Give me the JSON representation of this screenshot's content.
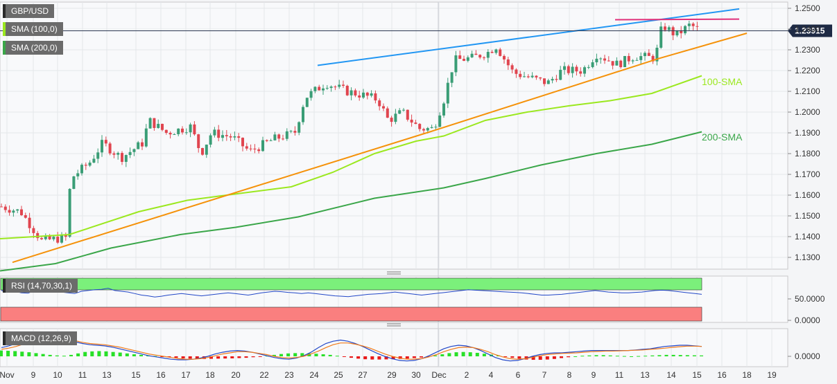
{
  "chart_data": {
    "type": "candlestick",
    "symbol": "GBP/USD",
    "last_price": "1.23915",
    "price_axis": {
      "ticks": [
        "1.2500",
        "1.2400",
        "1.2300",
        "1.2200",
        "1.2100",
        "1.2000",
        "1.1900",
        "1.1800",
        "1.1700",
        "1.1600",
        "1.1500",
        "1.1400",
        "1.1300"
      ],
      "range": [
        1.1238,
        1.2547
      ]
    },
    "x_ticks": [
      "Nov",
      "9",
      "10",
      "11",
      "13",
      "15",
      "16",
      "17",
      "18",
      "20",
      "22",
      "23",
      "24",
      "25",
      "27",
      "29",
      "30",
      "Dec",
      "2",
      "4",
      "6",
      "7",
      "8",
      "9",
      "11",
      "13",
      "14",
      "15",
      "16",
      "18",
      "19"
    ],
    "overlays": [
      {
        "name": "SMA (100,0)",
        "color": "#9be81f",
        "annotation": "100-SMA",
        "points": [
          [
            0,
            1.139
          ],
          [
            100,
            1.141
          ],
          [
            200,
            1.152
          ],
          [
            270,
            1.1575
          ],
          [
            350,
            1.161
          ],
          [
            420,
            1.164
          ],
          [
            480,
            1.171
          ],
          [
            540,
            1.18
          ],
          [
            600,
            1.186
          ],
          [
            640,
            1.1885
          ],
          [
            700,
            1.196
          ],
          [
            760,
            1.2
          ],
          [
            820,
            1.203
          ],
          [
            880,
            1.2055
          ],
          [
            940,
            1.209
          ],
          [
            1012,
            1.2175
          ]
        ]
      },
      {
        "name": "SMA (200,0)",
        "color": "#3aa649",
        "annotation": "200-SMA",
        "points": [
          [
            0,
            1.1235
          ],
          [
            80,
            1.127
          ],
          [
            160,
            1.1345
          ],
          [
            260,
            1.141
          ],
          [
            340,
            1.1445
          ],
          [
            430,
            1.1495
          ],
          [
            540,
            1.1585
          ],
          [
            640,
            1.1635
          ],
          [
            700,
            1.168
          ],
          [
            780,
            1.1745
          ],
          [
            860,
            1.18
          ],
          [
            940,
            1.1845
          ],
          [
            1012,
            1.1905
          ]
        ]
      }
    ],
    "trendlines": [
      {
        "name": "rising-support",
        "color": "#f5920a",
        "points": [
          [
            18,
            1.1276
          ],
          [
            620,
            1.1905
          ],
          [
            950,
            1.2258
          ],
          [
            1077,
            1.238
          ]
        ]
      },
      {
        "name": "channel-resistance",
        "color": "#2196f3",
        "points": [
          [
            458,
            1.2225
          ],
          [
            1066,
            1.2497
          ]
        ]
      },
      {
        "name": "horizontal-resistance",
        "color": "#e0307a",
        "points": [
          [
            887,
            1.2445
          ],
          [
            1066,
            1.2448
          ]
        ]
      }
    ],
    "rsi": {
      "label": "RSI (14,70,30,1)",
      "overbought": 70,
      "oversold": 30,
      "ticks": [
        "50.0000",
        "0.0000"
      ],
      "values": [
        72,
        68,
        70,
        66,
        65,
        72,
        74,
        76,
        72,
        68,
        66,
        64,
        70,
        72,
        74,
        75,
        78,
        72,
        70,
        68,
        64,
        60,
        58,
        55,
        57,
        60,
        62,
        64,
        62,
        60,
        58,
        60,
        62,
        64,
        66,
        64,
        62,
        60,
        63,
        66,
        68,
        70,
        69,
        67,
        66,
        64,
        66,
        64,
        62,
        60,
        58,
        57,
        56,
        58,
        60,
        62,
        63,
        64,
        66,
        68,
        66,
        64,
        62,
        60,
        62,
        64,
        66,
        68,
        70,
        72,
        74,
        73,
        72,
        71,
        70,
        69,
        68,
        67,
        66,
        64,
        62,
        60,
        60,
        61,
        62,
        64,
        66,
        68,
        70,
        72,
        70,
        68,
        67,
        66,
        66,
        67,
        68,
        70,
        72,
        73,
        72,
        70,
        68,
        66,
        64,
        62
      ]
    },
    "macd": {
      "label": "MACD (12,26,9)",
      "ticks": [
        "0.0000"
      ],
      "histogram": [
        40,
        38,
        36,
        32,
        28,
        22,
        16,
        10,
        6,
        4,
        10,
        20,
        30,
        34,
        36,
        34,
        30,
        26,
        20,
        14,
        10,
        6,
        2,
        -2,
        -6,
        -10,
        -14,
        -16,
        -18,
        -18,
        -17,
        -16,
        -15,
        -14,
        -12,
        -10,
        -6,
        -2,
        4,
        10,
        16,
        20,
        22,
        22,
        20,
        18,
        14,
        10,
        4,
        -4,
        -10,
        -16,
        -20,
        -22,
        -22,
        -21,
        -20,
        -18,
        -16,
        -12,
        -8,
        -2,
        6,
        14,
        22,
        28,
        30,
        28,
        24,
        18,
        12,
        6,
        -2,
        -10,
        -16,
        -22,
        -24,
        -24,
        -22,
        -18,
        -12,
        -6,
        0,
        4,
        6,
        8,
        8,
        6,
        4,
        2,
        0,
        2,
        4,
        6,
        8,
        10,
        10,
        9,
        8,
        7,
        6
      ],
      "macd": [
        30,
        36,
        44,
        52,
        62,
        70,
        74,
        72,
        66,
        58,
        50,
        44,
        40,
        38,
        36,
        32,
        26,
        20,
        14,
        8,
        2,
        -2,
        -6,
        -10,
        -12,
        -12,
        -10,
        -6,
        0,
        8,
        14,
        18,
        20,
        18,
        14,
        8,
        2,
        -4,
        -8,
        -10,
        -6,
        2,
        14,
        30,
        44,
        52,
        56,
        52,
        44,
        34,
        22,
        10,
        0,
        -8,
        -14,
        -16,
        -14,
        -8,
        2,
        14,
        26,
        34,
        38,
        36,
        30,
        20,
        8,
        -4,
        -12,
        -16,
        -14,
        -8,
        0,
        6,
        10,
        12,
        12,
        14,
        16,
        18,
        20,
        20,
        20,
        20,
        20,
        20,
        22,
        24,
        26,
        30,
        34,
        36,
        38,
        38,
        36,
        34
      ],
      "signal": [
        24,
        28,
        34,
        42,
        50,
        58,
        64,
        66,
        64,
        60,
        54,
        48,
        44,
        42,
        40,
        36,
        32,
        26,
        20,
        14,
        8,
        4,
        0,
        -4,
        -8,
        -10,
        -10,
        -8,
        -4,
        2,
        8,
        12,
        16,
        16,
        14,
        10,
        6,
        0,
        -4,
        -6,
        -4,
        0,
        8,
        18,
        30,
        40,
        46,
        46,
        42,
        36,
        28,
        18,
        8,
        0,
        -6,
        -10,
        -10,
        -8,
        -2,
        6,
        16,
        24,
        30,
        32,
        30,
        24,
        16,
        6,
        -2,
        -8,
        -10,
        -8,
        -4,
        2,
        6,
        8,
        10,
        11,
        12,
        14,
        16,
        17,
        18,
        18,
        19,
        20,
        21,
        22,
        24,
        26,
        28,
        31,
        33,
        35,
        35,
        34
      ]
    }
  }
}
